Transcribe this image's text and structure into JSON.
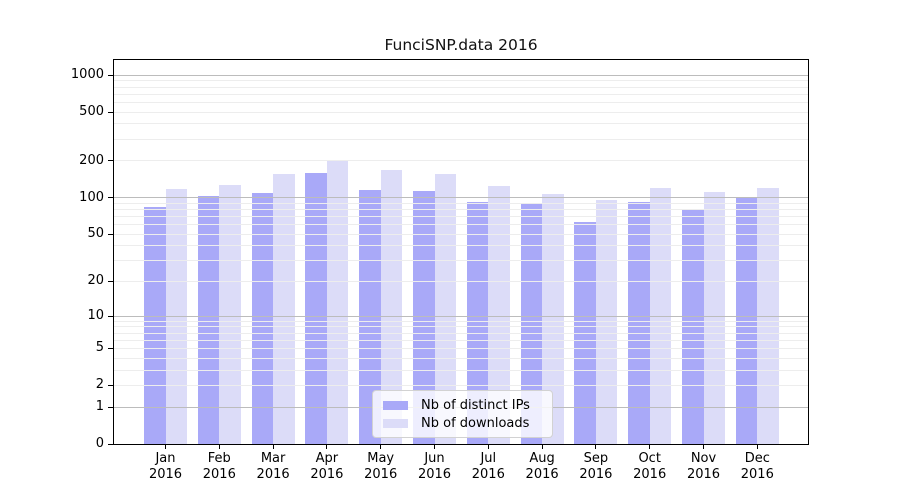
{
  "chart_data": {
    "type": "bar",
    "title": "FunciSNP.data 2016",
    "xlabel": "",
    "ylabel": "",
    "yscale": "log1p",
    "ylim": [
      0,
      1327
    ],
    "yticks": [
      0,
      1,
      2,
      5,
      10,
      20,
      50,
      100,
      200,
      500,
      1000
    ],
    "major_gridlines": [
      1,
      10,
      100,
      1000
    ],
    "minor_gridlines": [
      2,
      3,
      4,
      5,
      6,
      7,
      8,
      9,
      20,
      30,
      40,
      50,
      60,
      70,
      80,
      90,
      200,
      300,
      400,
      500,
      600,
      700,
      800,
      900
    ],
    "grid": true,
    "categories": [
      "Jan",
      "Feb",
      "Mar",
      "Apr",
      "May",
      "Jun",
      "Jul",
      "Aug",
      "Sep",
      "Oct",
      "Nov",
      "Dec"
    ],
    "year_label": "2016",
    "series": [
      {
        "name": "Nb of distinct IPs",
        "color": "#a9a9f8",
        "values": [
          83,
          104,
          110,
          160,
          116,
          113,
          92,
          89,
          63,
          92,
          80,
          100
        ]
      },
      {
        "name": "Nb of downloads",
        "color": "#dcdcf8",
        "values": [
          117,
          128,
          157,
          198,
          168,
          157,
          124,
          107,
          95,
          121,
          112,
          119
        ]
      }
    ],
    "legend_position": "lower-center"
  },
  "colors": {
    "background": "#ffffff",
    "axis": "#000000",
    "major_grid": "#bcbcbc",
    "minor_grid": "#ededed",
    "text": "#000000",
    "legend_border": "#d2d2d2",
    "legend_background": "rgba(255,255,255,0.8)"
  }
}
